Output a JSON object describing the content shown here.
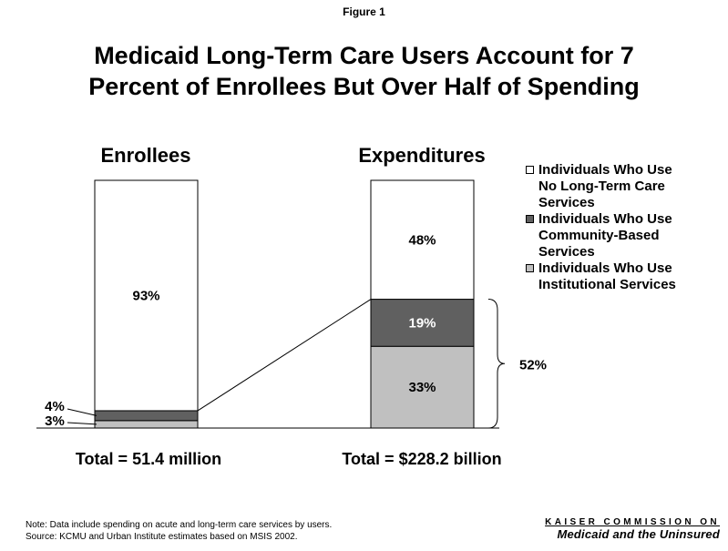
{
  "figure_label": "Figure 1",
  "title_line1": "Medicaid Long-Term Care Users Account for 7",
  "title_line2": "Percent of Enrollees But Over Half of Spending",
  "chart_data": {
    "type": "bar",
    "stacked": true,
    "percent_stacked": true,
    "categories": [
      "Enrollees",
      "Expenditures"
    ],
    "series": [
      {
        "name": "Individuals Who Use Institutional Services",
        "values": [
          3,
          33
        ],
        "labels": [
          "3%",
          "33%"
        ],
        "color": "#c0c0c0"
      },
      {
        "name": "Individuals Who Use Community-Based Services",
        "values": [
          4,
          19
        ],
        "labels": [
          "4%",
          "19%"
        ],
        "color": "#606060"
      },
      {
        "name": "Individuals Who Use No Long-Term Care Services",
        "values": [
          93,
          48
        ],
        "labels": [
          "93%",
          "48%"
        ],
        "color": "#ffffff"
      }
    ],
    "ylim": [
      0,
      100
    ],
    "bracket_label": "52%",
    "totals": [
      "Total = 51.4 million",
      "Total = $228.2 billion"
    ],
    "legend_position": "right"
  },
  "legend": [
    {
      "lines": [
        "Individuals Who Use",
        "No Long-Term Care",
        "Services"
      ],
      "color": "#ffffff"
    },
    {
      "lines": [
        "Individuals Who Use",
        "Community-Based",
        "Services"
      ],
      "color": "#606060"
    },
    {
      "lines": [
        "Individuals Who Use",
        "Institutional Services"
      ],
      "color": "#c0c0c0"
    }
  ],
  "note_line1": "Note: Data include spending on acute and long-term care services by users.",
  "note_line2": "Source: KCMU and Urban Institute estimates based on MSIS 2002.",
  "logo_line1": "KAISER COMMISSION ON",
  "logo_line2": "Medicaid and the Uninsured"
}
